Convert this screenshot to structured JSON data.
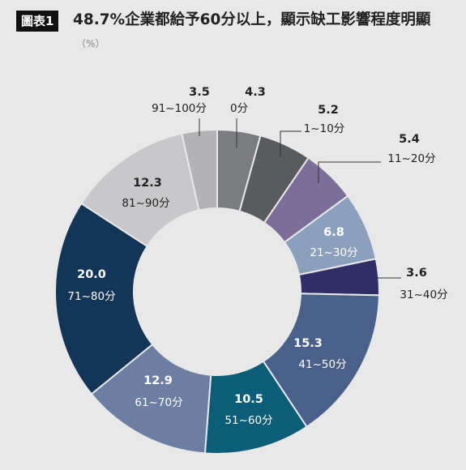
{
  "figure": {
    "badge": "圖表1",
    "title": "48.7%企業都給予60分以上，顯示缺工影響程度明顯",
    "unit": "（%）"
  },
  "chart_data": {
    "type": "donut",
    "title": "48.7%企業都給予60分以上，顯示缺工影響程度明顯",
    "unit": "%",
    "categories": [
      "0分",
      "1~10分",
      "11~20分",
      "21~30分",
      "31~40分",
      "41~50分",
      "51~60分",
      "61~70分",
      "71~80分",
      "81~90分",
      "91~100分"
    ],
    "values": [
      4.3,
      5.2,
      5.4,
      6.8,
      3.6,
      15.3,
      10.5,
      12.9,
      20.0,
      12.3,
      3.5
    ],
    "value_labels": [
      "4.3",
      "5.2",
      "5.4",
      "6.8",
      "3.6",
      "15.3",
      "10.5",
      "12.9",
      "20.0",
      "12.3",
      "3.5"
    ],
    "colors": [
      "#7b7c80",
      "#5a5b5e",
      "#7b6e99",
      "#8aa0bd",
      "#2f2e66",
      "#49608a",
      "#0b5e78",
      "#6c7fa3",
      "#133557",
      "#c8c8ca",
      "#b3b3b6"
    ]
  }
}
